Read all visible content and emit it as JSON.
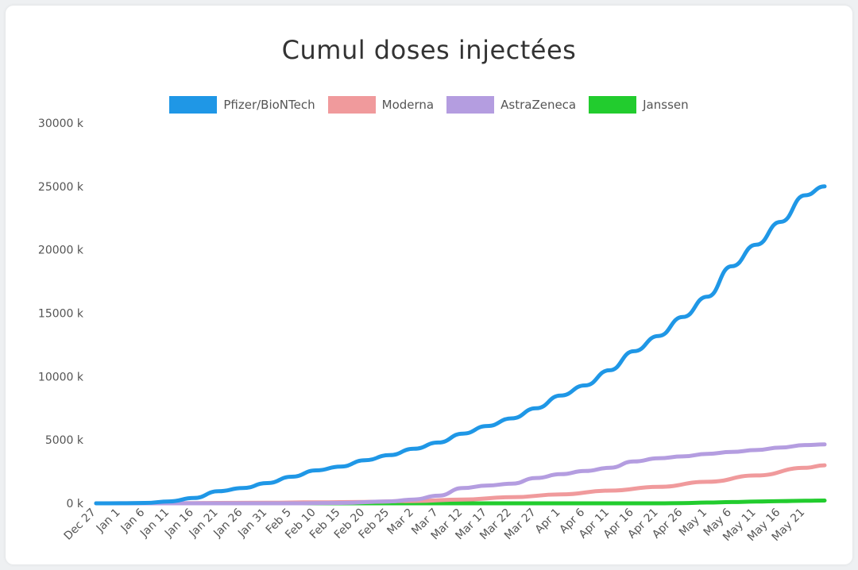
{
  "chart_data": {
    "type": "line",
    "title": "Cumul doses injectées",
    "x_ticks": [
      "Dec 27",
      "Jan 1",
      "Jan 6",
      "Jan 11",
      "Jan 16",
      "Jan 21",
      "Jan 26",
      "Jan 31",
      "Feb 5",
      "Feb 10",
      "Feb 15",
      "Feb 20",
      "Feb 25",
      "Mar 2",
      "Mar 7",
      "Mar 12",
      "Mar 17",
      "Mar 22",
      "Mar 27",
      "Apr 1",
      "Apr 6",
      "Apr 11",
      "Apr 16",
      "Apr 21",
      "Apr 26",
      "May 1",
      "May 6",
      "May 11",
      "May 16",
      "May 21"
    ],
    "y_ticks": [
      "30000 k",
      "25000 k",
      "20000 k",
      "15000 k",
      "10000 k",
      "5000 k",
      "0 k"
    ],
    "ylim": [
      0,
      30000
    ],
    "y_unit": "thousands",
    "x_start": "Dec 27",
    "x_end": "May 25",
    "legend_position": "top-center",
    "series": [
      {
        "name": "Pfizer/BioNTech",
        "color": "#1f97e6",
        "points": [
          [
            "Dec 27",
            0
          ],
          [
            "Jan 1",
            5
          ],
          [
            "Jan 6",
            30
          ],
          [
            "Jan 11",
            150
          ],
          [
            "Jan 16",
            420
          ],
          [
            "Jan 21",
            950
          ],
          [
            "Jan 26",
            1200
          ],
          [
            "Jan 31",
            1600
          ],
          [
            "Feb 5",
            2100
          ],
          [
            "Feb 10",
            2600
          ],
          [
            "Feb 15",
            2900
          ],
          [
            "Feb 20",
            3400
          ],
          [
            "Feb 25",
            3800
          ],
          [
            "Mar 2",
            4300
          ],
          [
            "Mar 7",
            4800
          ],
          [
            "Mar 12",
            5500
          ],
          [
            "Mar 17",
            6100
          ],
          [
            "Mar 22",
            6700
          ],
          [
            "Mar 27",
            7500
          ],
          [
            "Apr 1",
            8500
          ],
          [
            "Apr 6",
            9300
          ],
          [
            "Apr 11",
            10500
          ],
          [
            "Apr 16",
            12000
          ],
          [
            "Apr 21",
            13200
          ],
          [
            "Apr 26",
            14700
          ],
          [
            "May 1",
            16300
          ],
          [
            "May 6",
            18700
          ],
          [
            "May 11",
            20400
          ],
          [
            "May 16",
            22200
          ],
          [
            "May 21",
            24300
          ],
          [
            "May 25",
            25000
          ]
        ]
      },
      {
        "name": "Moderna",
        "color": "#f09a9c",
        "points": [
          [
            "Dec 27",
            0
          ],
          [
            "Jan 11",
            10
          ],
          [
            "Jan 16",
            20
          ],
          [
            "Jan 21",
            30
          ],
          [
            "Jan 31",
            50
          ],
          [
            "Feb 10",
            80
          ],
          [
            "Feb 20",
            110
          ],
          [
            "Mar 2",
            180
          ],
          [
            "Mar 12",
            300
          ],
          [
            "Mar 22",
            480
          ],
          [
            "Apr 1",
            700
          ],
          [
            "Apr 11",
            1000
          ],
          [
            "Apr 21",
            1300
          ],
          [
            "May 1",
            1700
          ],
          [
            "May 11",
            2200
          ],
          [
            "May 21",
            2800
          ],
          [
            "May 25",
            3000
          ]
        ]
      },
      {
        "name": "AstraZeneca",
        "color": "#b49de0",
        "points": [
          [
            "Dec 27",
            0
          ],
          [
            "Feb 5",
            0
          ],
          [
            "Feb 15",
            30
          ],
          [
            "Feb 25",
            150
          ],
          [
            "Mar 2",
            300
          ],
          [
            "Mar 7",
            600
          ],
          [
            "Mar 12",
            1200
          ],
          [
            "Mar 17",
            1400
          ],
          [
            "Mar 22",
            1550
          ],
          [
            "Mar 27",
            2000
          ],
          [
            "Apr 1",
            2300
          ],
          [
            "Apr 6",
            2550
          ],
          [
            "Apr 11",
            2800
          ],
          [
            "Apr 16",
            3300
          ],
          [
            "Apr 21",
            3550
          ],
          [
            "Apr 26",
            3700
          ],
          [
            "May 1",
            3900
          ],
          [
            "May 6",
            4050
          ],
          [
            "May 11",
            4200
          ],
          [
            "May 16",
            4400
          ],
          [
            "May 21",
            4600
          ],
          [
            "May 25",
            4650
          ]
        ]
      },
      {
        "name": "Janssen",
        "color": "#22cc2e",
        "points": [
          [
            "Dec 27",
            0
          ],
          [
            "Apr 21",
            0
          ],
          [
            "Apr 26",
            20
          ],
          [
            "May 1",
            60
          ],
          [
            "May 6",
            100
          ],
          [
            "May 11",
            140
          ],
          [
            "May 16",
            170
          ],
          [
            "May 21",
            200
          ],
          [
            "May 25",
            220
          ]
        ]
      }
    ]
  }
}
